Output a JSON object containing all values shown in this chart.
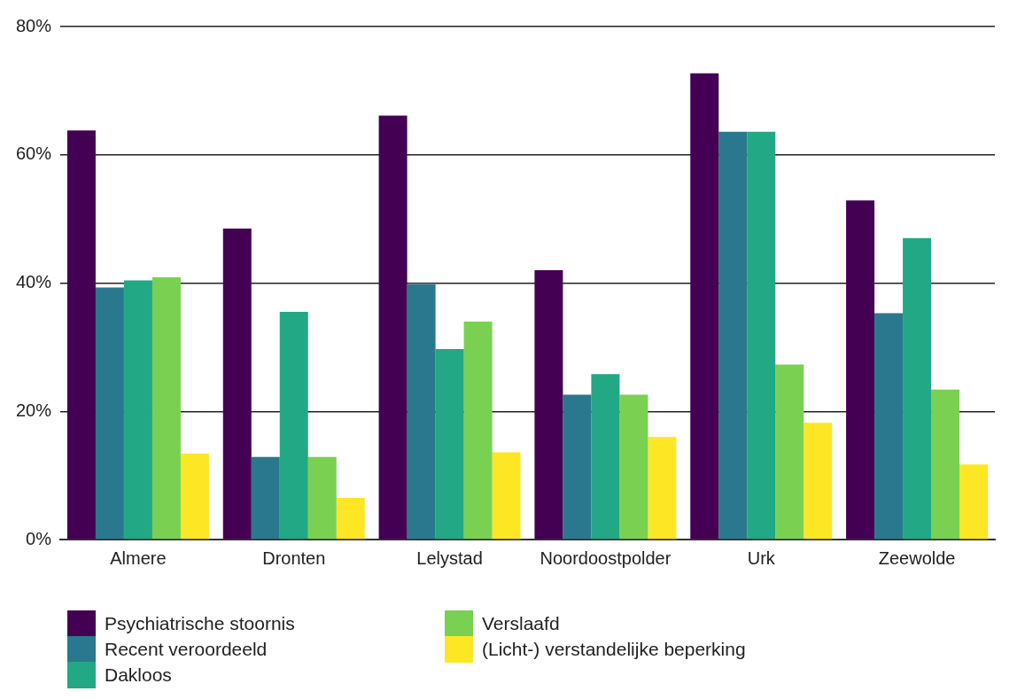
{
  "chart_data": {
    "type": "bar",
    "categories": [
      "Almere",
      "Dronten",
      "Lelystad",
      "Noordoostpolder",
      "Urk",
      "Zeewolde"
    ],
    "series": [
      {
        "name": "Psychiatrische stoornis",
        "color": "#440154",
        "values": [
          63.8,
          48.5,
          66.1,
          42.0,
          72.7,
          52.9
        ]
      },
      {
        "name": "Recent veroordeeld",
        "color": "#2a788e",
        "values": [
          39.3,
          12.9,
          39.8,
          22.6,
          63.6,
          35.3
        ]
      },
      {
        "name": "Dakloos",
        "color": "#22a884",
        "values": [
          40.4,
          35.5,
          29.7,
          25.8,
          63.6,
          47.0
        ]
      },
      {
        "name": "Verslaafd",
        "color": "#7ad151",
        "values": [
          40.9,
          12.9,
          34.0,
          22.6,
          27.3,
          23.4
        ]
      },
      {
        "name": "(Licht-) verstandelijke beperking",
        "color": "#fde725",
        "values": [
          13.4,
          6.5,
          13.6,
          16.0,
          18.2,
          11.7
        ]
      }
    ],
    "ylim": [
      0,
      80
    ],
    "yticks": [
      {
        "value": 0,
        "label": "0%"
      },
      {
        "value": 20,
        "label": "20%"
      },
      {
        "value": 40,
        "label": "40%"
      },
      {
        "value": 60,
        "label": "60%"
      },
      {
        "value": 80,
        "label": "80%"
      }
    ],
    "grid": "y",
    "legend": "bottom"
  }
}
